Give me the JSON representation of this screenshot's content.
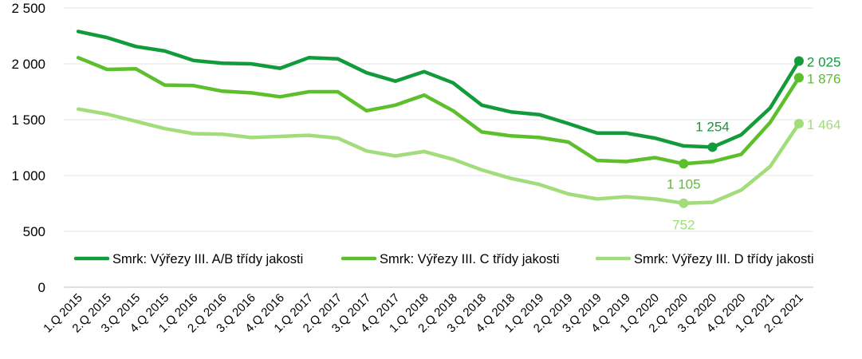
{
  "chart_data": {
    "type": "line",
    "title": "",
    "xlabel": "",
    "ylabel": "",
    "ylim": [
      0,
      2500
    ],
    "yticks": [
      "0",
      "500",
      "1 000",
      "1 500",
      "2 000",
      "2 500"
    ],
    "ytick_values": [
      0,
      500,
      1000,
      1500,
      2000,
      2500
    ],
    "grid": true,
    "legend_position": "bottom-inside",
    "categories": [
      "1.Q 2015",
      "2.Q 2015",
      "3.Q 2015",
      "4.Q 2015",
      "1.Q 2016",
      "2.Q 2016",
      "3.Q 2016",
      "4.Q 2016",
      "1.Q 2017",
      "2.Q 2017",
      "3.Q 2017",
      "4.Q 2017",
      "1.Q 2018",
      "2.Q 2018",
      "3.Q 2018",
      "4.Q 2018",
      "1.Q 2019",
      "2.Q 2019",
      "3.Q 2019",
      "4.Q 2019",
      "1.Q 2020",
      "2.Q 2020",
      "3.Q 2020",
      "4.Q 2020",
      "1.Q 2021",
      "2.Q 2021"
    ],
    "series": [
      {
        "name": "Smrk: Výřezy III. A/B třídy jakosti",
        "color": "#129b3b",
        "values": [
          2290,
          2235,
          2155,
          2115,
          2030,
          2005,
          2000,
          1960,
          2055,
          2045,
          1920,
          1845,
          1930,
          1830,
          1630,
          1570,
          1545,
          1465,
          1380,
          1380,
          1335,
          1265,
          1254,
          1365,
          1605,
          2025
        ]
      },
      {
        "name": "Smrk: Výřezy III. C třídy jakosti",
        "color": "#5cbf2b",
        "values": [
          2055,
          1950,
          1955,
          1810,
          1805,
          1755,
          1740,
          1705,
          1750,
          1750,
          1580,
          1630,
          1720,
          1580,
          1390,
          1355,
          1340,
          1300,
          1135,
          1125,
          1160,
          1105,
          1125,
          1190,
          1475,
          1876
        ]
      },
      {
        "name": "Smrk: Výřezy III. D třídy jakosti",
        "color": "#a3dc7a",
        "values": [
          1595,
          1550,
          1485,
          1420,
          1375,
          1370,
          1340,
          1350,
          1360,
          1335,
          1220,
          1175,
          1215,
          1145,
          1050,
          975,
          920,
          835,
          790,
          810,
          790,
          752,
          760,
          870,
          1080,
          1464
        ]
      }
    ],
    "annotations": [
      {
        "series": 0,
        "index": 22,
        "text": "1 254",
        "color": "#129b3b",
        "marker": true
      },
      {
        "series": 0,
        "index": 25,
        "text": "2 025",
        "color": "#129b3b",
        "marker": true
      },
      {
        "series": 1,
        "index": 21,
        "text": "1 105",
        "color": "#5cbf2b",
        "marker": true
      },
      {
        "series": 1,
        "index": 25,
        "text": "1 876",
        "color": "#5cbf2b",
        "marker": true
      },
      {
        "series": 2,
        "index": 21,
        "text": "752",
        "color": "#a3dc7a",
        "marker": true
      },
      {
        "series": 2,
        "index": 25,
        "text": "1 464",
        "color": "#a3dc7a",
        "marker": true
      }
    ]
  }
}
